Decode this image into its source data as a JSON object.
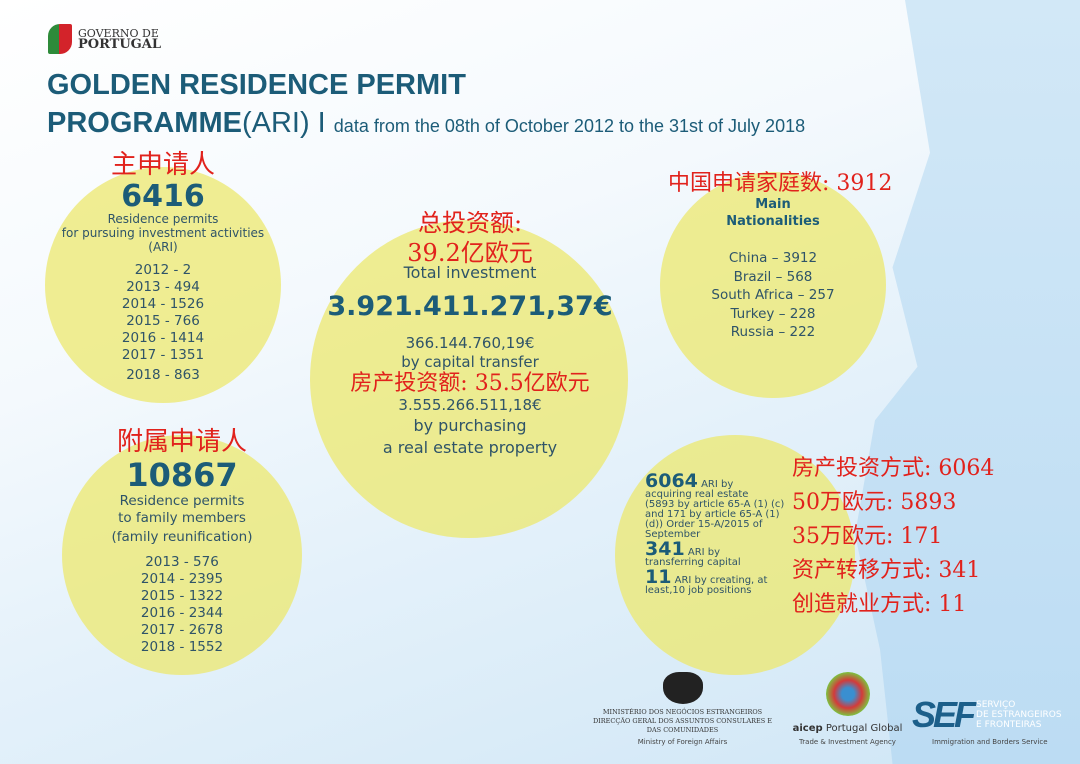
{
  "header": {
    "logo_line1": "GOVERNO DE",
    "logo_line2": "PORTUGAL",
    "title_line1": "GOLDEN RESIDENCE PERMIT",
    "title_line2_bold": "PROGRAMME",
    "title_line2_paren": "(ARI) I",
    "subtitle": "data from the 08th of October 2012 to the 31st of July 2018"
  },
  "main_applicants": {
    "cn_label": "主申请人",
    "count": "6416",
    "desc1": "Residence permits",
    "desc2": "for pursuing investment activities",
    "desc3": "(ARI)",
    "years": [
      "2012 - 2",
      "2013 - 494",
      "2014 - 1526",
      "2015 - 766",
      "2016 - 1414",
      "2017 - 1351",
      "2018 - 863"
    ]
  },
  "family": {
    "cn_label": "附属申请人",
    "count": "10867",
    "desc1": "Residence permits",
    "desc2": "to family members",
    "desc3": "(family reunification)",
    "years": [
      "2013 - 576",
      "2014 - 2395",
      "2015 - 1322",
      "2016 - 2344",
      "2017 - 2678",
      "2018 - 1552"
    ]
  },
  "investment": {
    "cn_label1": "总投资额:",
    "cn_label2": "39.2亿欧元",
    "label": "Total investment",
    "total": "3.921.411.271,37€",
    "capital_amount": "366.144.760,19€",
    "capital_label": "by capital transfer",
    "cn_realestate": "房产投资额: 35.5亿欧元",
    "realestate_amount": "3.555.266.511,18€",
    "realestate_label1": "by purchasing",
    "realestate_label2": "a real estate property"
  },
  "nationalities": {
    "cn_label": "中国申请家庭数: 3912",
    "title1": "Main",
    "title2": "Nationalities",
    "items": [
      "China – 3912",
      "Brazil  –  568",
      "South Africa – 257",
      "Turkey – 228",
      "Russia – 222"
    ]
  },
  "types": {
    "n1": "6064",
    "t1a": "ARI by",
    "t1b": "acquiring real estate",
    "t1c": "(5893 by article 65-A (1) (c)",
    "t1d": "and 171 by article 65-A (1)",
    "t1e": "(d))  Order 15-A/2015 of",
    "t1f": "September",
    "n2": "341",
    "t2a": "ARI by",
    "t2b": "transferring capital",
    "n3": "11",
    "t3a": "ARI by creating, at",
    "t3b": "least,10 job positions"
  },
  "cn_summary": [
    "房产投资方式: 6064",
    "50万欧元: 5893",
    "35万欧元: 171",
    "资产转移方式: 341",
    "创造就业方式: 11"
  ],
  "footer": {
    "mne1": "MINISTÉRIO DOS NEGÓCIOS ESTRANGEIROS",
    "mne2": "DIRECÇÃO GERAL DOS ASSUNTOS CONSULARES E",
    "mne3": "DAS COMUNIDADES",
    "mne_en": "Ministry of Foreign Affairs",
    "aicep_bold": "aicep",
    "aicep_rest": " Portugal Global",
    "aicep_en": "Trade & Investment Agency",
    "sef_logo": "SEF",
    "sef1": "SERVIÇO",
    "sef2": "DE ESTRANGEIROS",
    "sef3": "E FRONTEIRAS",
    "sef_en": "Immigration and Borders Service"
  },
  "colors": {
    "title": "#1c5c78",
    "chinese_red": "#e1221c",
    "circle": "#ece86e"
  }
}
